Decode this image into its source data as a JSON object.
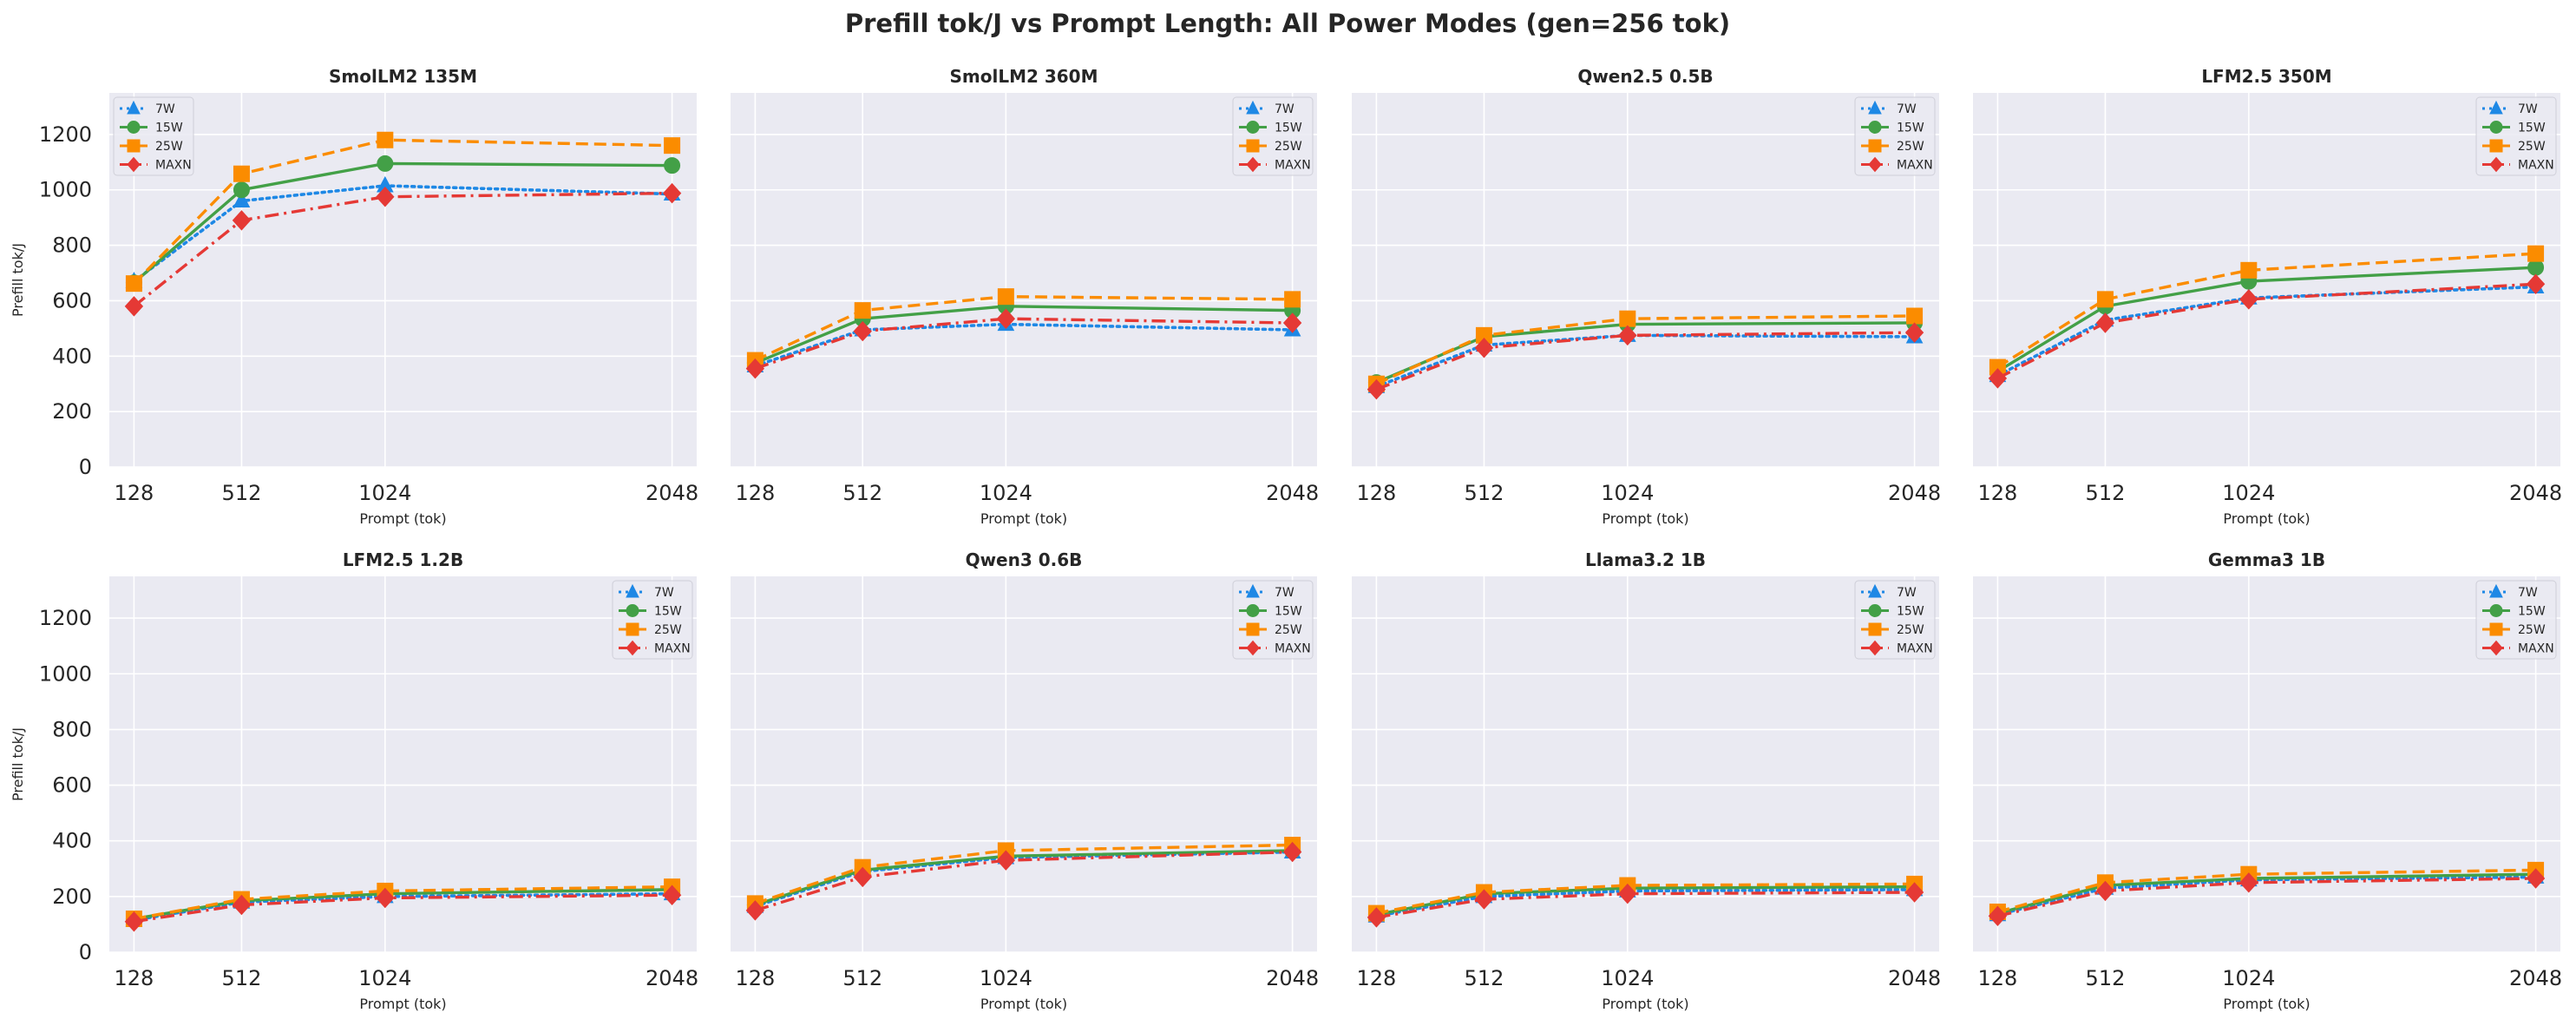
{
  "title": "Prefill tok/J vs Prompt Length: All Power Modes (gen=256 tok)",
  "chart_data": {
    "type": "line",
    "shared": {
      "x": [
        128,
        512,
        1024,
        2048
      ],
      "x_tick_labels": [
        "128",
        "512",
        "1024",
        "2048"
      ],
      "y_ticks": [
        0,
        200,
        400,
        600,
        800,
        1000,
        1200
      ],
      "ylim": [
        0,
        1350
      ],
      "xlim": [
        40,
        2136
      ],
      "xlabel": "Prompt (tok)",
      "ylabel": "Prefill tok/J",
      "grid": true
    },
    "series_styles": [
      {
        "name": "7W",
        "color": "#1e88e5",
        "marker": "triangle",
        "dash": "dotted"
      },
      {
        "name": "15W",
        "color": "#43a047",
        "marker": "circle",
        "dash": "solid"
      },
      {
        "name": "25W",
        "color": "#fb8c00",
        "marker": "square",
        "dash": "dashed"
      },
      {
        "name": "MAXN",
        "color": "#e53935",
        "marker": "diamond",
        "dash": "dashdot"
      }
    ],
    "panels": [
      {
        "title": "SmolLM2 135M",
        "legend": "upper-left",
        "series": [
          {
            "name": "7W",
            "values": [
              670,
              960,
              1015,
              985
            ]
          },
          {
            "name": "15W",
            "values": [
              665,
              1000,
              1095,
              1088
            ]
          },
          {
            "name": "25W",
            "values": [
              662,
              1058,
              1180,
              1160
            ]
          },
          {
            "name": "MAXN",
            "values": [
              580,
              890,
              975,
              988
            ]
          }
        ]
      },
      {
        "title": "SmolLM2 360M",
        "legend": "upper-right",
        "series": [
          {
            "name": "7W",
            "values": [
              365,
              495,
              515,
              495
            ]
          },
          {
            "name": "15W",
            "values": [
              375,
              535,
              580,
              565
            ]
          },
          {
            "name": "25W",
            "values": [
              385,
              565,
              615,
              605
            ]
          },
          {
            "name": "MAXN",
            "values": [
              355,
              490,
              535,
              520
            ]
          }
        ]
      },
      {
        "title": "Qwen2.5 0.5B",
        "legend": "upper-right",
        "series": [
          {
            "name": "7W",
            "values": [
              290,
              440,
              475,
              470
            ]
          },
          {
            "name": "15W",
            "values": [
              305,
              470,
              515,
              520
            ]
          },
          {
            "name": "25W",
            "values": [
              300,
              475,
              535,
              545
            ]
          },
          {
            "name": "MAXN",
            "values": [
              280,
              430,
              475,
              485
            ]
          }
        ]
      },
      {
        "title": "LFM2.5 350M",
        "legend": "upper-right",
        "series": [
          {
            "name": "7W",
            "values": [
              330,
              530,
              610,
              650
            ]
          },
          {
            "name": "15W",
            "values": [
              345,
              580,
              670,
              720
            ]
          },
          {
            "name": "25W",
            "values": [
              360,
              605,
              710,
              770
            ]
          },
          {
            "name": "MAXN",
            "values": [
              320,
              520,
              605,
              660
            ]
          }
        ]
      },
      {
        "title": "LFM2.5 1.2B",
        "legend": "upper-right",
        "series": [
          {
            "name": "7W",
            "values": [
              115,
              180,
              200,
              210
            ]
          },
          {
            "name": "15W",
            "values": [
              120,
              185,
              210,
              225
            ]
          },
          {
            "name": "25W",
            "values": [
              120,
              190,
              220,
              235
            ]
          },
          {
            "name": "MAXN",
            "values": [
              110,
              170,
              195,
              205
            ]
          }
        ]
      },
      {
        "title": "Qwen3 0.6B",
        "legend": "upper-right",
        "series": [
          {
            "name": "7W",
            "values": [
              165,
              290,
              340,
              360
            ]
          },
          {
            "name": "15W",
            "values": [
              170,
              295,
              345,
              365
            ]
          },
          {
            "name": "25W",
            "values": [
              175,
              305,
              365,
              385
            ]
          },
          {
            "name": "MAXN",
            "values": [
              150,
              270,
              330,
              360
            ]
          }
        ]
      },
      {
        "title": "Llama3.2 1B",
        "legend": "upper-right",
        "series": [
          {
            "name": "7W",
            "values": [
              130,
              200,
              220,
              225
            ]
          },
          {
            "name": "15W",
            "values": [
              135,
              210,
              230,
              235
            ]
          },
          {
            "name": "25W",
            "values": [
              140,
              215,
              240,
              245
            ]
          },
          {
            "name": "MAXN",
            "values": [
              125,
              190,
              210,
              215
            ]
          }
        ]
      },
      {
        "title": "Gemma3 1B",
        "legend": "upper-right",
        "series": [
          {
            "name": "7W",
            "values": [
              135,
              230,
              260,
              270
            ]
          },
          {
            "name": "15W",
            "values": [
              140,
              240,
              265,
              280
            ]
          },
          {
            "name": "25W",
            "values": [
              145,
              250,
              280,
              295
            ]
          },
          {
            "name": "MAXN",
            "values": [
              130,
              220,
              250,
              265
            ]
          }
        ]
      }
    ]
  }
}
